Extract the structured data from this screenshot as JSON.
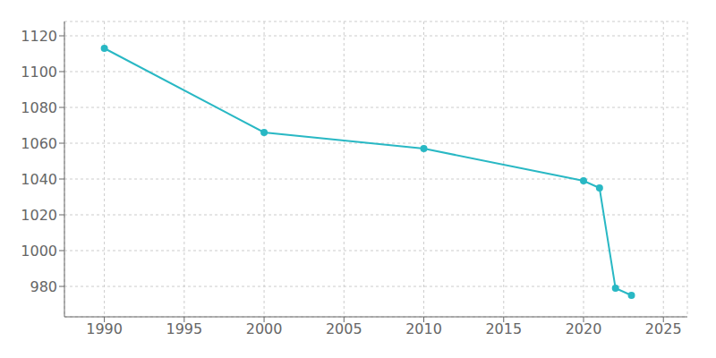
{
  "chart_data": {
    "type": "line",
    "x": [
      1990,
      2000,
      2010,
      2020,
      2021,
      2022,
      2023
    ],
    "values": [
      1113,
      1066,
      1057,
      1039,
      1035,
      979,
      975
    ],
    "color": "#29b8c4",
    "marker": "circle",
    "xlim": [
      1987.5,
      2026.5
    ],
    "ylim": [
      963,
      1128
    ],
    "xticks": [
      1990,
      1995,
      2000,
      2005,
      2010,
      2015,
      2020,
      2025
    ],
    "yticks": [
      980,
      1000,
      1020,
      1040,
      1060,
      1080,
      1100,
      1120
    ],
    "grid": true
  }
}
